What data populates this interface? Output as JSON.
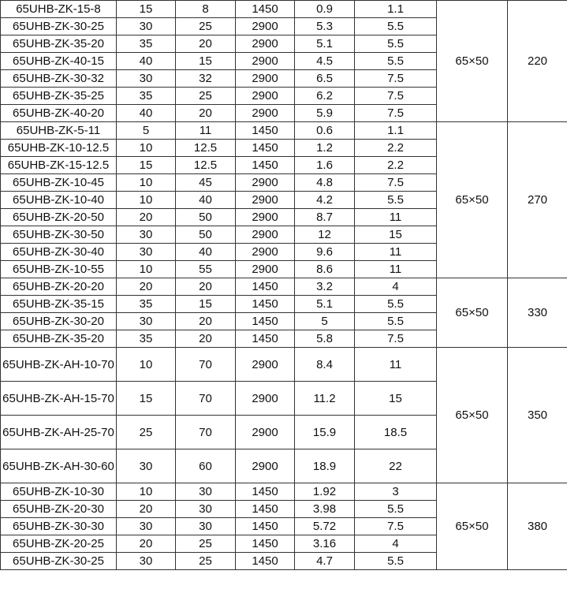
{
  "groups": [
    {
      "size": "65×50",
      "value": "220",
      "rows": [
        [
          "65UHB-ZK-15-8",
          "15",
          "8",
          "1450",
          "0.9",
          "1.1"
        ],
        [
          "65UHB-ZK-30-25",
          "30",
          "25",
          "2900",
          "5.3",
          "5.5"
        ],
        [
          "65UHB-ZK-35-20",
          "35",
          "20",
          "2900",
          "5.1",
          "5.5"
        ],
        [
          "65UHB-ZK-40-15",
          "40",
          "15",
          "2900",
          "4.5",
          "5.5"
        ],
        [
          "65UHB-ZK-30-32",
          "30",
          "32",
          "2900",
          "6.5",
          "7.5"
        ],
        [
          "65UHB-ZK-35-25",
          "35",
          "25",
          "2900",
          "6.2",
          "7.5"
        ],
        [
          "65UHB-ZK-40-20",
          "40",
          "20",
          "2900",
          "5.9",
          "7.5"
        ]
      ]
    },
    {
      "size": "65×50",
      "value": "270",
      "rows": [
        [
          "65UHB-ZK-5-11",
          "5",
          "11",
          "1450",
          "0.6",
          "1.1"
        ],
        [
          "65UHB-ZK-10-12.5",
          "10",
          "12.5",
          "1450",
          "1.2",
          "2.2"
        ],
        [
          "65UHB-ZK-15-12.5",
          "15",
          "12.5",
          "1450",
          "1.6",
          "2.2"
        ],
        [
          "65UHB-ZK-10-45",
          "10",
          "45",
          "2900",
          "4.8",
          "7.5"
        ],
        [
          "65UHB-ZK-10-40",
          "10",
          "40",
          "2900",
          "4.2",
          "5.5"
        ],
        [
          "65UHB-ZK-20-50",
          "20",
          "50",
          "2900",
          "8.7",
          "11"
        ],
        [
          "65UHB-ZK-30-50",
          "30",
          "50",
          "2900",
          "12",
          "15"
        ],
        [
          "65UHB-ZK-30-40",
          "30",
          "40",
          "2900",
          "9.6",
          "11"
        ],
        [
          "65UHB-ZK-10-55",
          "10",
          "55",
          "2900",
          "8.6",
          "11"
        ]
      ]
    },
    {
      "size": "65×50",
      "value": "330",
      "rows": [
        [
          "65UHB-ZK-20-20",
          "20",
          "20",
          "1450",
          "3.2",
          "4"
        ],
        [
          "65UHB-ZK-35-15",
          "35",
          "15",
          "1450",
          "5.1",
          "5.5"
        ],
        [
          "65UHB-ZK-30-20",
          "30",
          "20",
          "1450",
          "5",
          "5.5"
        ],
        [
          "65UHB-ZK-35-20",
          "35",
          "20",
          "1450",
          "5.8",
          "7.5"
        ]
      ]
    },
    {
      "size": "65×50",
      "value": "350",
      "tall": true,
      "rows": [
        [
          "65UHB-ZK-AH-10-70",
          "10",
          "70",
          "2900",
          "8.4",
          "11"
        ],
        [
          "65UHB-ZK-AH-15-70",
          "15",
          "70",
          "2900",
          "11.2",
          "15"
        ],
        [
          "65UHB-ZK-AH-25-70",
          "25",
          "70",
          "2900",
          "15.9",
          "18.5"
        ],
        [
          "65UHB-ZK-AH-30-60",
          "30",
          "60",
          "2900",
          "18.9",
          "22"
        ]
      ]
    },
    {
      "size": "65×50",
      "value": "380",
      "rows": [
        [
          "65UHB-ZK-10-30",
          "10",
          "30",
          "1450",
          "1.92",
          "3"
        ],
        [
          "65UHB-ZK-20-30",
          "20",
          "30",
          "1450",
          "3.98",
          "5.5"
        ],
        [
          "65UHB-ZK-30-30",
          "30",
          "30",
          "1450",
          "5.72",
          "7.5"
        ],
        [
          "65UHB-ZK-20-25",
          "20",
          "25",
          "1450",
          "3.16",
          "4"
        ],
        [
          "65UHB-ZK-30-25",
          "30",
          "25",
          "1450",
          "4.7",
          "5.5"
        ]
      ]
    }
  ]
}
